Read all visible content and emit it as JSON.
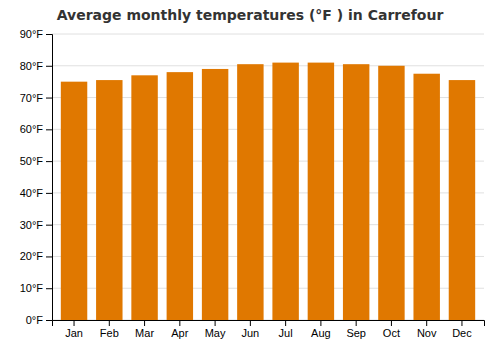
{
  "chart_data": {
    "type": "bar",
    "title": "Average monthly temperatures (°F ) in Carrefour",
    "categories": [
      "Jan",
      "Feb",
      "Mar",
      "Apr",
      "May",
      "Jun",
      "Jul",
      "Aug",
      "Sep",
      "Oct",
      "Nov",
      "Dec"
    ],
    "values": [
      75.0,
      75.5,
      77.0,
      78.0,
      79.0,
      80.5,
      81.0,
      81.0,
      80.5,
      80.0,
      77.5,
      75.5
    ],
    "color": "#E07800",
    "ylim": [
      0,
      90
    ],
    "yticks": [
      {
        "value": 0,
        "label": "0°F"
      },
      {
        "value": 10,
        "label": "10°F"
      },
      {
        "value": 20,
        "label": "20°F"
      },
      {
        "value": 30,
        "label": "30°F"
      },
      {
        "value": 40,
        "label": "40°F"
      },
      {
        "value": 50,
        "label": "50°F"
      },
      {
        "value": 60,
        "label": "60°F"
      },
      {
        "value": 70,
        "label": "70°F"
      },
      {
        "value": 80,
        "label": "80°F"
      },
      {
        "value": 90,
        "label": "90°F"
      }
    ],
    "grid": true
  }
}
